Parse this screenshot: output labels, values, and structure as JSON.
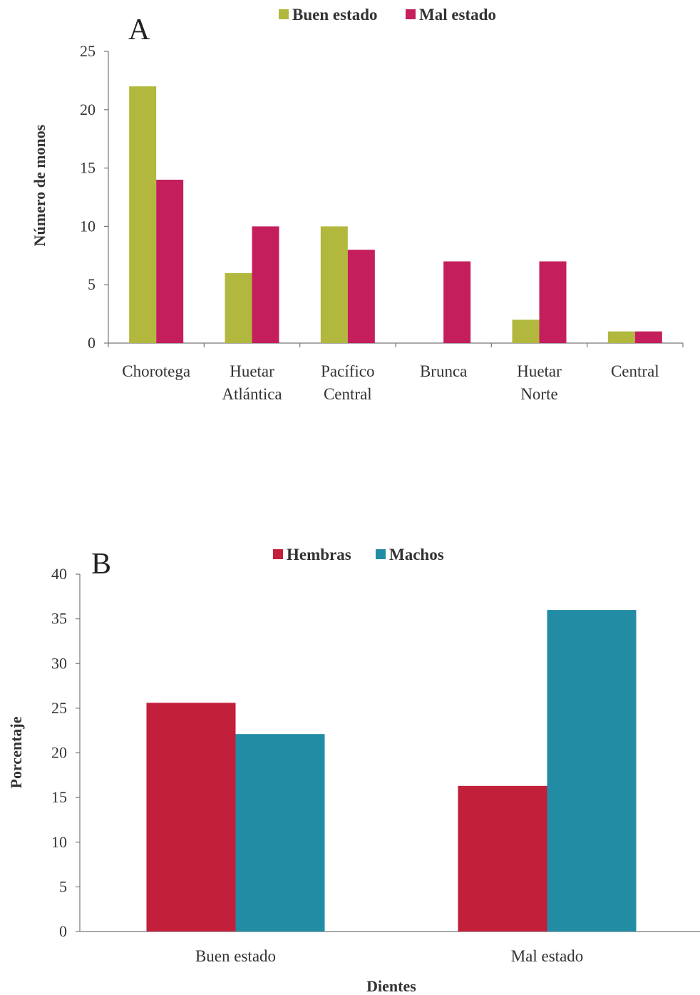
{
  "chart_data": [
    {
      "type": "bar",
      "panel_label": "A",
      "categories": [
        [
          "Chorotega"
        ],
        [
          "Huetar",
          "Atlántica"
        ],
        [
          "Pacífico",
          "Central"
        ],
        [
          "Brunca"
        ],
        [
          "Huetar",
          "Norte"
        ],
        [
          "Central"
        ]
      ],
      "series": [
        {
          "name": "Buen estado",
          "color": "#b1b83d",
          "values": [
            22,
            6,
            10,
            0,
            2,
            1
          ]
        },
        {
          "name": "Mal estado",
          "color": "#c41f5c",
          "values": [
            14,
            10,
            8,
            7,
            7,
            1
          ]
        }
      ],
      "ylabel": "Número de monos",
      "xlabel": "",
      "ylim": [
        0,
        25
      ],
      "yticks": [
        0,
        5,
        10,
        15,
        20,
        25
      ],
      "legend": "top-center",
      "grid": false
    },
    {
      "type": "bar",
      "panel_label": "B",
      "categories": [
        [
          "Buen estado"
        ],
        [
          "Mal estado"
        ]
      ],
      "series": [
        {
          "name": "Hembras",
          "color": "#c21f3b",
          "values": [
            25.6,
            16.3
          ]
        },
        {
          "name": "Machos",
          "color": "#228ca5",
          "values": [
            22.1,
            36
          ]
        }
      ],
      "ylabel": "Porcentaje",
      "xlabel": "Dientes",
      "ylim": [
        0,
        40
      ],
      "yticks": [
        0,
        5,
        10,
        15,
        20,
        25,
        30,
        35,
        40
      ],
      "legend": "top-center",
      "grid": false
    }
  ]
}
